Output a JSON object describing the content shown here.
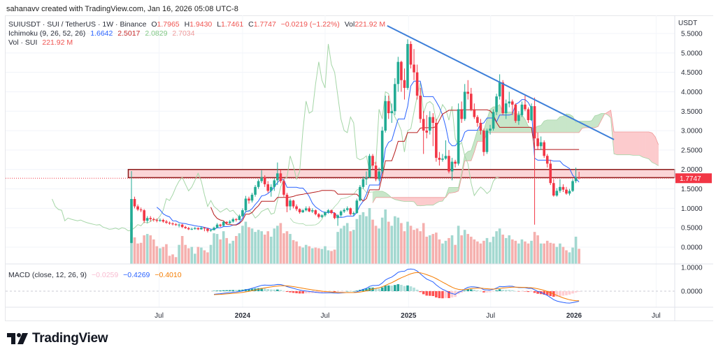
{
  "credit": "sahanavv created with TradingView.com, Jan 16, 2026 05:08 UTC-8",
  "legend": {
    "symbol": "SUIUSDT · SUI / TetherUS · 1W · Binance",
    "o_label": "O",
    "o": "1.7965",
    "h_label": "H",
    "h": "1.9430",
    "l_label": "L",
    "l": "1.7461",
    "c_label": "C",
    "c": "1.7747",
    "change": "−0.0219 (−1.22%)",
    "vol_label": "Vol",
    "vol": "221.92 M",
    "ichimoku_label": "Ichimoku (9, 26, 52, 26)",
    "ichimoku_values": [
      "1.6642",
      "2.5017",
      "2.0829",
      "2.7034"
    ],
    "volume_label": "Vol · SUI",
    "volume_value": "221.92 M",
    "macd_label": "MACD (close, 12, 26, 9)",
    "macd_values": [
      "−0.0259",
      "−0.4269",
      "−0.4010"
    ]
  },
  "axis": {
    "currency": "USDT",
    "last_price_tag": "1.7747",
    "price_ticks": [
      "0.0000",
      "0.5000",
      "1.0000",
      "1.5000",
      "2.0000",
      "2.5000",
      "3.0000",
      "3.5000",
      "4.0000",
      "4.5000",
      "5.0000",
      "5.5000"
    ],
    "macd_ticks": [
      "0.0000",
      "1.0000"
    ],
    "time_ticks": [
      {
        "label": "Jul",
        "date": "2023-07-01",
        "bold": false
      },
      {
        "label": "2024",
        "date": "2024-01-01",
        "bold": true
      },
      {
        "label": "Jul",
        "date": "2024-07-01",
        "bold": false
      },
      {
        "label": "2025",
        "date": "2025-01-01",
        "bold": true
      },
      {
        "label": "Jul",
        "date": "2025-07-01",
        "bold": false
      },
      {
        "label": "2026",
        "date": "2026-01-01",
        "bold": true
      },
      {
        "label": "Jul",
        "date": "2026-07-01",
        "bold": false
      }
    ]
  },
  "brand": "TradingView",
  "colors": {
    "up": "#22ab94",
    "down": "#f23645",
    "vol_up": "#a3d8d0",
    "vol_down": "#f5b0ae",
    "tenkan": "#2962ff",
    "kijun": "#b71c1c",
    "lagging": "#a5d6a7",
    "cloud_up": "#c8e6c9",
    "cloud_down": "#fccbcd",
    "trendline": "#3d7fd9",
    "zone_fill": "#fbd5d7",
    "zone_border": "#8b1a1a",
    "macd": "#2962ff",
    "signal": "#f57c00",
    "hist_up_rise": "#26a69a",
    "hist_up_fall": "#b2dfdb",
    "hist_down_fall": "#ff5252",
    "hist_down_rise": "#ffcdd2",
    "price_tag": "#f23645"
  },
  "chart_data": {
    "type": "candlestick",
    "symbol": "SUIUSDT",
    "interval": "1W",
    "exchange": "Binance",
    "price_range": [
      0,
      5.5
    ],
    "macd_range": [
      -0.5,
      1.0
    ],
    "indicators": {
      "ichimoku": {
        "conversion": 9,
        "base": 26,
        "span_b": 52,
        "displacement": 26
      },
      "macd": {
        "source": "close",
        "fast": 12,
        "slow": 26,
        "signal": 9
      },
      "volume": true
    },
    "drawings": {
      "trendline": {
        "from": {
          "date": "2024-11-15",
          "price": 5.7
        },
        "to": {
          "date": "2026-03-30",
          "price": 2.77
        }
      },
      "zone": {
        "from_date": "2023-04-24",
        "price_low": 1.79,
        "price_high": 2.0
      }
    },
    "candles_columns": [
      "date",
      "open",
      "high",
      "low",
      "close",
      "volume_m"
    ],
    "candles": [
      [
        "2023-05-01",
        0.11,
        1.96,
        0.1,
        1.24,
        610
      ],
      [
        "2023-05-08",
        1.24,
        1.3,
        1.0,
        1.05,
        390
      ],
      [
        "2023-05-15",
        1.05,
        1.1,
        0.93,
        0.97,
        300
      ],
      [
        "2023-05-22",
        0.97,
        1.02,
        0.9,
        0.95,
        310
      ],
      [
        "2023-05-29",
        0.95,
        0.98,
        0.62,
        0.68,
        420
      ],
      [
        "2023-06-05",
        0.68,
        0.8,
        0.62,
        0.75,
        440
      ],
      [
        "2023-06-12",
        0.75,
        0.8,
        0.66,
        0.72,
        420
      ],
      [
        "2023-06-19",
        0.72,
        0.76,
        0.66,
        0.7,
        360
      ],
      [
        "2023-06-26",
        0.7,
        0.74,
        0.64,
        0.68,
        260
      ],
      [
        "2023-07-03",
        0.68,
        0.74,
        0.65,
        0.7,
        230
      ],
      [
        "2023-07-10",
        0.7,
        0.73,
        0.63,
        0.66,
        250
      ],
      [
        "2023-07-17",
        0.66,
        0.7,
        0.6,
        0.63,
        290
      ],
      [
        "2023-07-24",
        0.63,
        0.66,
        0.58,
        0.61,
        120
      ],
      [
        "2023-07-31",
        0.61,
        0.64,
        0.56,
        0.59,
        140
      ],
      [
        "2023-08-07",
        0.59,
        0.62,
        0.55,
        0.57,
        100
      ],
      [
        "2023-08-14",
        0.57,
        0.61,
        0.51,
        0.58,
        280
      ],
      [
        "2023-08-21",
        0.58,
        0.6,
        0.49,
        0.52,
        410
      ],
      [
        "2023-08-28",
        0.52,
        0.55,
        0.47,
        0.49,
        280
      ],
      [
        "2023-09-04",
        0.49,
        0.52,
        0.44,
        0.46,
        230
      ],
      [
        "2023-09-11",
        0.46,
        0.5,
        0.44,
        0.47,
        250
      ],
      [
        "2023-09-18",
        0.47,
        0.52,
        0.45,
        0.49,
        150
      ],
      [
        "2023-09-25",
        0.49,
        0.51,
        0.44,
        0.46,
        250
      ],
      [
        "2023-10-02",
        0.46,
        0.53,
        0.45,
        0.5,
        240
      ],
      [
        "2023-10-09",
        0.5,
        0.52,
        0.41,
        0.48,
        200
      ],
      [
        "2023-10-16",
        0.48,
        0.49,
        0.38,
        0.42,
        170
      ],
      [
        "2023-10-23",
        0.42,
        0.47,
        0.4,
        0.44,
        280
      ],
      [
        "2023-10-30",
        0.44,
        0.53,
        0.43,
        0.5,
        450
      ],
      [
        "2023-11-06",
        0.5,
        0.62,
        0.49,
        0.58,
        440
      ],
      [
        "2023-11-13",
        0.58,
        0.6,
        0.52,
        0.55,
        360
      ],
      [
        "2023-11-20",
        0.55,
        0.68,
        0.54,
        0.65,
        480
      ],
      [
        "2023-11-27",
        0.65,
        0.67,
        0.58,
        0.62,
        380
      ],
      [
        "2023-12-04",
        0.62,
        0.7,
        0.6,
        0.66,
        300
      ],
      [
        "2023-12-11",
        0.66,
        0.76,
        0.63,
        0.72,
        340
      ],
      [
        "2023-12-18",
        0.72,
        0.75,
        0.66,
        0.7,
        410
      ],
      [
        "2023-12-25",
        0.7,
        0.84,
        0.69,
        0.8,
        450
      ],
      [
        "2024-01-01",
        0.8,
        1.0,
        0.78,
        0.95,
        560
      ],
      [
        "2024-01-08",
        0.95,
        1.32,
        0.92,
        1.25,
        620
      ],
      [
        "2024-01-15",
        1.25,
        1.3,
        1.12,
        1.2,
        540
      ],
      [
        "2024-01-22",
        1.2,
        1.4,
        1.15,
        1.35,
        520
      ],
      [
        "2024-01-29",
        1.35,
        1.6,
        1.3,
        1.55,
        470
      ],
      [
        "2024-02-05",
        1.55,
        1.75,
        1.5,
        1.7,
        500
      ],
      [
        "2024-02-12",
        1.7,
        1.98,
        1.65,
        1.8,
        480
      ],
      [
        "2024-02-19",
        1.8,
        1.85,
        1.55,
        1.62,
        430
      ],
      [
        "2024-02-26",
        1.62,
        1.7,
        1.4,
        1.45,
        480
      ],
      [
        "2024-03-04",
        1.45,
        1.62,
        1.3,
        1.55,
        400
      ],
      [
        "2024-03-11",
        1.55,
        1.78,
        1.45,
        1.72,
        520
      ],
      [
        "2024-03-18",
        1.72,
        2.18,
        1.6,
        1.9,
        560
      ],
      [
        "2024-03-25",
        1.9,
        2.0,
        1.65,
        1.7,
        600
      ],
      [
        "2024-04-01",
        1.7,
        1.75,
        1.3,
        1.35,
        450
      ],
      [
        "2024-04-08",
        1.35,
        1.4,
        0.9,
        1.05,
        480
      ],
      [
        "2024-04-15",
        1.05,
        1.25,
        0.95,
        1.2,
        440
      ],
      [
        "2024-04-22",
        1.2,
        1.22,
        1.0,
        1.05,
        350
      ],
      [
        "2024-04-29",
        1.05,
        1.1,
        0.93,
        0.98,
        330
      ],
      [
        "2024-05-06",
        0.98,
        1.0,
        0.86,
        0.9,
        260
      ],
      [
        "2024-05-13",
        0.9,
        0.98,
        0.88,
        0.95,
        240
      ],
      [
        "2024-05-20",
        0.95,
        1.05,
        0.92,
        1.0,
        280
      ],
      [
        "2024-05-27",
        1.0,
        1.05,
        0.9,
        0.92,
        260
      ],
      [
        "2024-06-03",
        0.92,
        1.0,
        0.88,
        0.95,
        230
      ],
      [
        "2024-06-10",
        0.95,
        0.97,
        0.82,
        0.85,
        240
      ],
      [
        "2024-06-17",
        0.85,
        0.88,
        0.74,
        0.78,
        230
      ],
      [
        "2024-06-24",
        0.78,
        0.85,
        0.75,
        0.82,
        220
      ],
      [
        "2024-07-01",
        0.82,
        0.92,
        0.78,
        0.9,
        260
      ],
      [
        "2024-07-08",
        0.9,
        0.98,
        0.86,
        0.95,
        200
      ],
      [
        "2024-07-15",
        0.95,
        0.97,
        0.85,
        0.88,
        190
      ],
      [
        "2024-07-22",
        0.88,
        0.9,
        0.72,
        0.75,
        210
      ],
      [
        "2024-07-29",
        0.75,
        0.85,
        0.55,
        0.82,
        470
      ],
      [
        "2024-08-05",
        0.82,
        0.95,
        0.78,
        0.92,
        520
      ],
      [
        "2024-08-12",
        0.92,
        1.0,
        0.88,
        0.96,
        560
      ],
      [
        "2024-08-19",
        0.96,
        1.05,
        0.92,
        1.0,
        600
      ],
      [
        "2024-08-26",
        1.0,
        1.02,
        0.82,
        0.85,
        480
      ],
      [
        "2024-09-02",
        0.85,
        0.92,
        0.8,
        0.88,
        500
      ],
      [
        "2024-09-09",
        0.88,
        1.25,
        0.86,
        1.2,
        660
      ],
      [
        "2024-09-16",
        1.2,
        1.6,
        1.18,
        1.55,
        720
      ],
      [
        "2024-09-23",
        1.55,
        1.82,
        1.5,
        1.75,
        760
      ],
      [
        "2024-09-30",
        1.75,
        1.95,
        1.6,
        1.8,
        700
      ],
      [
        "2024-10-07",
        1.8,
        2.4,
        1.78,
        2.35,
        820
      ],
      [
        "2024-10-14",
        2.35,
        2.4,
        2.0,
        2.1,
        650
      ],
      [
        "2024-10-21",
        2.1,
        2.2,
        1.7,
        1.75,
        560
      ],
      [
        "2024-10-28",
        1.75,
        2.05,
        1.7,
        1.95,
        520
      ],
      [
        "2024-11-04",
        1.95,
        3.1,
        1.9,
        3.0,
        680
      ],
      [
        "2024-11-11",
        3.0,
        3.9,
        2.95,
        3.76,
        800
      ],
      [
        "2024-11-18",
        3.76,
        3.9,
        3.3,
        3.45,
        620
      ],
      [
        "2024-11-25",
        3.45,
        3.7,
        3.2,
        3.5,
        560
      ],
      [
        "2024-12-02",
        3.5,
        4.35,
        3.4,
        4.2,
        700
      ],
      [
        "2024-12-09",
        4.2,
        4.9,
        4.0,
        4.77,
        680
      ],
      [
        "2024-12-16",
        4.77,
        4.8,
        4.0,
        4.3,
        600
      ],
      [
        "2024-12-23",
        4.3,
        4.6,
        3.8,
        4.1,
        480
      ],
      [
        "2024-12-30",
        4.1,
        5.35,
        4.05,
        5.23,
        620
      ],
      [
        "2025-01-06",
        5.23,
        5.3,
        4.6,
        4.7,
        560
      ],
      [
        "2025-01-13",
        4.7,
        5.1,
        4.3,
        4.5,
        500
      ],
      [
        "2025-01-20",
        4.5,
        4.7,
        3.8,
        3.9,
        520
      ],
      [
        "2025-01-27",
        3.9,
        4.1,
        3.2,
        3.3,
        480
      ],
      [
        "2025-02-03",
        3.3,
        3.5,
        2.4,
        3.0,
        600
      ],
      [
        "2025-02-10",
        3.0,
        3.4,
        2.8,
        2.95,
        400
      ],
      [
        "2025-02-17",
        3.0,
        3.5,
        2.9,
        3.35,
        420
      ],
      [
        "2025-02-24",
        3.35,
        3.45,
        2.6,
        3.2,
        440
      ],
      [
        "2025-03-03",
        3.2,
        3.3,
        2.2,
        2.3,
        460
      ],
      [
        "2025-03-10",
        2.3,
        2.45,
        2.1,
        2.25,
        360
      ],
      [
        "2025-03-17",
        2.25,
        2.4,
        2.2,
        2.28,
        300
      ],
      [
        "2025-03-24",
        2.28,
        2.75,
        2.25,
        2.35,
        340
      ],
      [
        "2025-03-31",
        2.35,
        2.5,
        1.9,
        1.95,
        380
      ],
      [
        "2025-04-07",
        1.95,
        2.3,
        1.72,
        2.2,
        420
      ],
      [
        "2025-04-14",
        2.2,
        2.25,
        2.05,
        2.15,
        280
      ],
      [
        "2025-04-21",
        2.15,
        3.7,
        2.1,
        3.55,
        560
      ],
      [
        "2025-04-28",
        3.55,
        3.75,
        3.2,
        3.3,
        420
      ],
      [
        "2025-05-05",
        3.3,
        4.2,
        3.25,
        4.0,
        500
      ],
      [
        "2025-05-12",
        4.0,
        4.3,
        3.8,
        3.95,
        440
      ],
      [
        "2025-05-19",
        3.95,
        4.1,
        3.5,
        3.55,
        400
      ],
      [
        "2025-05-26",
        3.55,
        3.7,
        3.3,
        3.35,
        360
      ],
      [
        "2025-06-02",
        3.35,
        3.4,
        3.1,
        3.2,
        330
      ],
      [
        "2025-06-09",
        3.2,
        3.3,
        2.9,
        3.0,
        300
      ],
      [
        "2025-06-16",
        3.0,
        3.05,
        2.35,
        2.45,
        340
      ],
      [
        "2025-06-23",
        2.45,
        3.05,
        2.4,
        3.0,
        380
      ],
      [
        "2025-06-30",
        3.0,
        3.15,
        2.9,
        3.05,
        320
      ],
      [
        "2025-07-07",
        3.05,
        3.55,
        3.0,
        3.48,
        400
      ],
      [
        "2025-07-14",
        3.48,
        3.95,
        3.4,
        3.88,
        480
      ],
      [
        "2025-07-21",
        3.88,
        4.45,
        3.8,
        4.24,
        520
      ],
      [
        "2025-07-28",
        4.24,
        4.3,
        3.4,
        3.45,
        430
      ],
      [
        "2025-08-04",
        3.45,
        3.8,
        3.3,
        3.7,
        380
      ],
      [
        "2025-08-11",
        3.7,
        4.0,
        3.6,
        3.75,
        420
      ],
      [
        "2025-08-18",
        3.75,
        3.8,
        3.4,
        3.67,
        360
      ],
      [
        "2025-08-25",
        3.67,
        3.7,
        3.2,
        3.25,
        340
      ],
      [
        "2025-09-01",
        3.25,
        3.5,
        3.15,
        3.4,
        300
      ],
      [
        "2025-09-08",
        3.4,
        3.75,
        3.35,
        3.67,
        360
      ],
      [
        "2025-09-15",
        3.67,
        3.9,
        3.5,
        3.55,
        330
      ],
      [
        "2025-09-22",
        3.55,
        3.6,
        3.2,
        3.27,
        300
      ],
      [
        "2025-09-29",
        3.27,
        3.7,
        3.25,
        3.63,
        340
      ],
      [
        "2025-10-06",
        3.63,
        3.85,
        0.58,
        2.8,
        470
      ],
      [
        "2025-10-13",
        2.8,
        2.95,
        2.5,
        2.6,
        420
      ],
      [
        "2025-10-20",
        2.6,
        2.85,
        2.5,
        2.7,
        300
      ],
      [
        "2025-10-27",
        2.7,
        2.75,
        2.3,
        2.35,
        300
      ],
      [
        "2025-11-03",
        2.35,
        2.4,
        2.05,
        2.15,
        340
      ],
      [
        "2025-11-10",
        2.15,
        2.25,
        1.6,
        1.65,
        310
      ],
      [
        "2025-11-17",
        1.65,
        1.75,
        1.3,
        1.33,
        300
      ],
      [
        "2025-11-24",
        1.33,
        1.52,
        1.3,
        1.45,
        250
      ],
      [
        "2025-12-01",
        1.45,
        1.75,
        1.4,
        1.55,
        300
      ],
      [
        "2025-12-08",
        1.55,
        1.62,
        1.42,
        1.48,
        250
      ],
      [
        "2025-12-15",
        1.48,
        1.55,
        1.35,
        1.38,
        200
      ],
      [
        "2025-12-22",
        1.38,
        1.5,
        1.33,
        1.45,
        170
      ],
      [
        "2025-12-29",
        1.45,
        1.75,
        1.42,
        1.7,
        240
      ],
      [
        "2026-01-05",
        1.7,
        2.05,
        1.65,
        1.7965,
        400
      ],
      [
        "2026-01-12",
        1.7965,
        1.943,
        1.7461,
        1.7747,
        221.92
      ]
    ]
  }
}
